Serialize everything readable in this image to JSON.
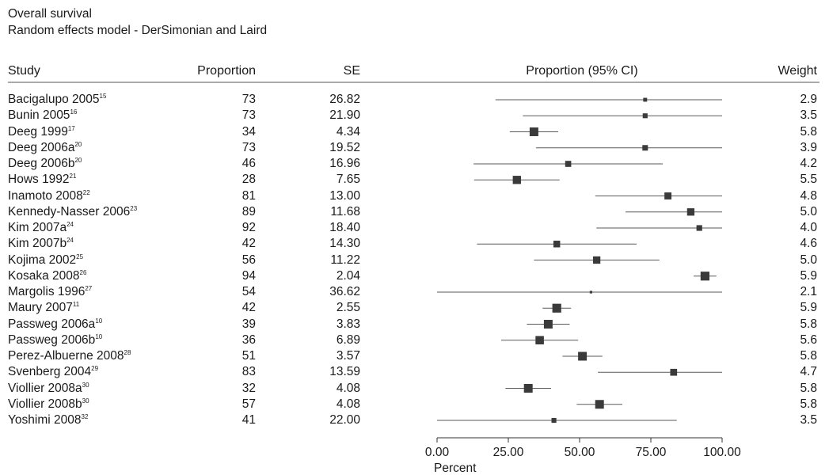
{
  "header": {
    "title_line1": "Overall survival",
    "title_line2": "Random effects model - DerSimonian and Laird",
    "col_study": "Study",
    "col_proportion": "Proportion",
    "col_se": "SE",
    "col_ci": "Proportion (95% CI)",
    "col_weight": "Weight"
  },
  "chart_data": {
    "type": "forest",
    "xlabel": "Percent",
    "xlim": [
      0,
      100
    ],
    "xticks": [
      "0.00",
      "25.00",
      "50.00",
      "75.00",
      "100.00"
    ],
    "marker_color": "#3a3a3a",
    "line_color": "#5a5a5a",
    "studies": [
      {
        "name": "Bacigalupo 2005",
        "ref": "15",
        "proportion": "73",
        "se": "26.82",
        "weight": "2.9",
        "est": 73,
        "lo": 20.5,
        "hi": 100
      },
      {
        "name": "Bunin 2005",
        "ref": "16",
        "proportion": "73",
        "se": "21.90",
        "weight": "3.5",
        "est": 73,
        "lo": 30.1,
        "hi": 100
      },
      {
        "name": "Deeg 1999",
        "ref": "17",
        "proportion": "34",
        "se": "4.34",
        "weight": "5.8",
        "est": 34,
        "lo": 25.5,
        "hi": 42.5
      },
      {
        "name": "Deeg 2006a",
        "ref": "20",
        "proportion": "73",
        "se": "19.52",
        "weight": "3.9",
        "est": 73,
        "lo": 34.7,
        "hi": 100
      },
      {
        "name": "Deeg 2006b",
        "ref": "20",
        "proportion": "46",
        "se": "16.96",
        "weight": "4.2",
        "est": 46,
        "lo": 12.8,
        "hi": 79.2
      },
      {
        "name": "Hows 1992",
        "ref": "21",
        "proportion": "28",
        "se": "7.65",
        "weight": "5.5",
        "est": 28,
        "lo": 13,
        "hi": 43
      },
      {
        "name": "Inamoto 2008",
        "ref": "22",
        "proportion": "81",
        "se": "13.00",
        "weight": "4.8",
        "est": 81,
        "lo": 55.5,
        "hi": 100
      },
      {
        "name": "Kennedy-Nasser 2006",
        "ref": "23",
        "proportion": "89",
        "se": "11.68",
        "weight": "5.0",
        "est": 89,
        "lo": 66.1,
        "hi": 100
      },
      {
        "name": "Kim 2007a",
        "ref": "24",
        "proportion": "92",
        "se": "18.40",
        "weight": "4.0",
        "est": 92,
        "lo": 55.9,
        "hi": 100
      },
      {
        "name": "Kim 2007b",
        "ref": "24",
        "proportion": "42",
        "se": "14.30",
        "weight": "4.6",
        "est": 42,
        "lo": 14,
        "hi": 70
      },
      {
        "name": "Kojima 2002",
        "ref": "25",
        "proportion": "56",
        "se": "11.22",
        "weight": "5.0",
        "est": 56,
        "lo": 34,
        "hi": 78
      },
      {
        "name": "Kosaka 2008",
        "ref": "26",
        "proportion": "94",
        "se": "2.04",
        "weight": "5.9",
        "est": 94,
        "lo": 90,
        "hi": 98
      },
      {
        "name": "Margolis 1996",
        "ref": "27",
        "proportion": "54",
        "se": "36.62",
        "weight": "2.1",
        "est": 54,
        "lo": 0,
        "hi": 100
      },
      {
        "name": "Maury 2007",
        "ref": "11",
        "proportion": "42",
        "se": "2.55",
        "weight": "5.9",
        "est": 42,
        "lo": 37,
        "hi": 47
      },
      {
        "name": "Passweg 2006a",
        "ref": "10",
        "proportion": "39",
        "se": "3.83",
        "weight": "5.8",
        "est": 39,
        "lo": 31.5,
        "hi": 46.5
      },
      {
        "name": "Passweg 2006b",
        "ref": "10",
        "proportion": "36",
        "se": "6.89",
        "weight": "5.6",
        "est": 36,
        "lo": 22.5,
        "hi": 49.5
      },
      {
        "name": "Perez-Albuerne 2008",
        "ref": "28",
        "proportion": "51",
        "se": "3.57",
        "weight": "5.8",
        "est": 51,
        "lo": 44,
        "hi": 58
      },
      {
        "name": "Svenberg 2004",
        "ref": "29",
        "proportion": "83",
        "se": "13.59",
        "weight": "4.7",
        "est": 83,
        "lo": 56.4,
        "hi": 100
      },
      {
        "name": "Viollier 2008a",
        "ref": "30",
        "proportion": "32",
        "se": "4.08",
        "weight": "5.8",
        "est": 32,
        "lo": 24,
        "hi": 40
      },
      {
        "name": "Viollier 2008b",
        "ref": "30",
        "proportion": "57",
        "se": "4.08",
        "weight": "5.8",
        "est": 57,
        "lo": 49,
        "hi": 65
      },
      {
        "name": "Yoshimi 2008",
        "ref": "32",
        "proportion": "41",
        "se": "22.00",
        "weight": "3.5",
        "est": 41,
        "lo": 0,
        "hi": 84.1
      }
    ]
  }
}
